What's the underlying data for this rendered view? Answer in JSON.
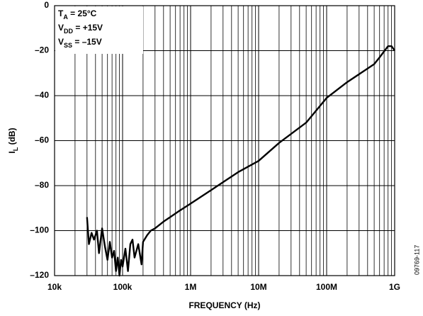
{
  "chart_data": {
    "type": "line",
    "xlabel": "FREQUENCY (Hz)",
    "ylabel": {
      "main": "I",
      "sub": "L",
      "rest": " (dB)"
    },
    "annotations": [
      {
        "main": "T",
        "sub": "A",
        "rest": " = 25°C"
      },
      {
        "main": "V",
        "sub": "DD",
        "rest": " = +15V"
      },
      {
        "main": "V",
        "sub": "SS",
        "rest": " = –15V"
      }
    ],
    "footnote": "09769-117",
    "xscale": "log",
    "grid": true,
    "xlim": [
      10000,
      1000000000
    ],
    "ylim": [
      -120,
      0
    ],
    "xticks": [
      {
        "value": 10000,
        "label": "10k"
      },
      {
        "value": 100000,
        "label": "100k"
      },
      {
        "value": 1000000,
        "label": "1M"
      },
      {
        "value": 10000000,
        "label": "10M"
      },
      {
        "value": 100000000,
        "label": "100M"
      },
      {
        "value": 1000000000,
        "label": "1G"
      }
    ],
    "xminor": [
      20000,
      30000,
      40000,
      50000,
      60000,
      70000,
      80000,
      90000,
      200000,
      300000,
      400000,
      500000,
      600000,
      700000,
      800000,
      900000,
      2000000,
      3000000,
      4000000,
      5000000,
      6000000,
      7000000,
      8000000,
      9000000,
      20000000,
      30000000,
      40000000,
      50000000,
      60000000,
      70000000,
      80000000,
      90000000,
      200000000,
      300000000,
      400000000,
      500000000,
      600000000,
      700000000,
      800000000,
      900000000
    ],
    "yticks": [
      0,
      {
        "value": -20,
        "label": "–20"
      },
      {
        "value": -40,
        "label": "–40"
      },
      {
        "value": -60,
        "label": "–60"
      },
      {
        "value": -80,
        "label": "–80"
      },
      {
        "value": -100,
        "label": "–100"
      },
      {
        "value": -120,
        "label": "–120"
      }
    ],
    "series": [
      {
        "color": "#000000",
        "x": [
          30000,
          32000,
          35000,
          38000,
          42000,
          45000,
          50000,
          55000,
          60000,
          65000,
          70000,
          75000,
          80000,
          85000,
          90000,
          95000,
          100000,
          110000,
          120000,
          130000,
          140000,
          150000,
          170000,
          190000,
          200000,
          230000,
          260000,
          300000,
          400000,
          500000,
          700000,
          1000000,
          2000000,
          5000000,
          10000000,
          20000000,
          50000000,
          100000000,
          200000000,
          500000000,
          600000000,
          800000000,
          900000000,
          1000000000
        ],
        "values": [
          -94,
          -106,
          -101,
          -104,
          -100,
          -110,
          -99,
          -107,
          -113,
          -105,
          -112,
          -109,
          -118,
          -112,
          -120,
          -113,
          -116,
          -108,
          -118,
          -106,
          -104,
          -112,
          -106,
          -115,
          -105,
          -102,
          -100,
          -99,
          -96,
          -94,
          -91,
          -88,
          -82,
          -74,
          -69,
          -61,
          -52,
          -41,
          -34,
          -26,
          -23,
          -18,
          -18,
          -20
        ]
      }
    ]
  }
}
